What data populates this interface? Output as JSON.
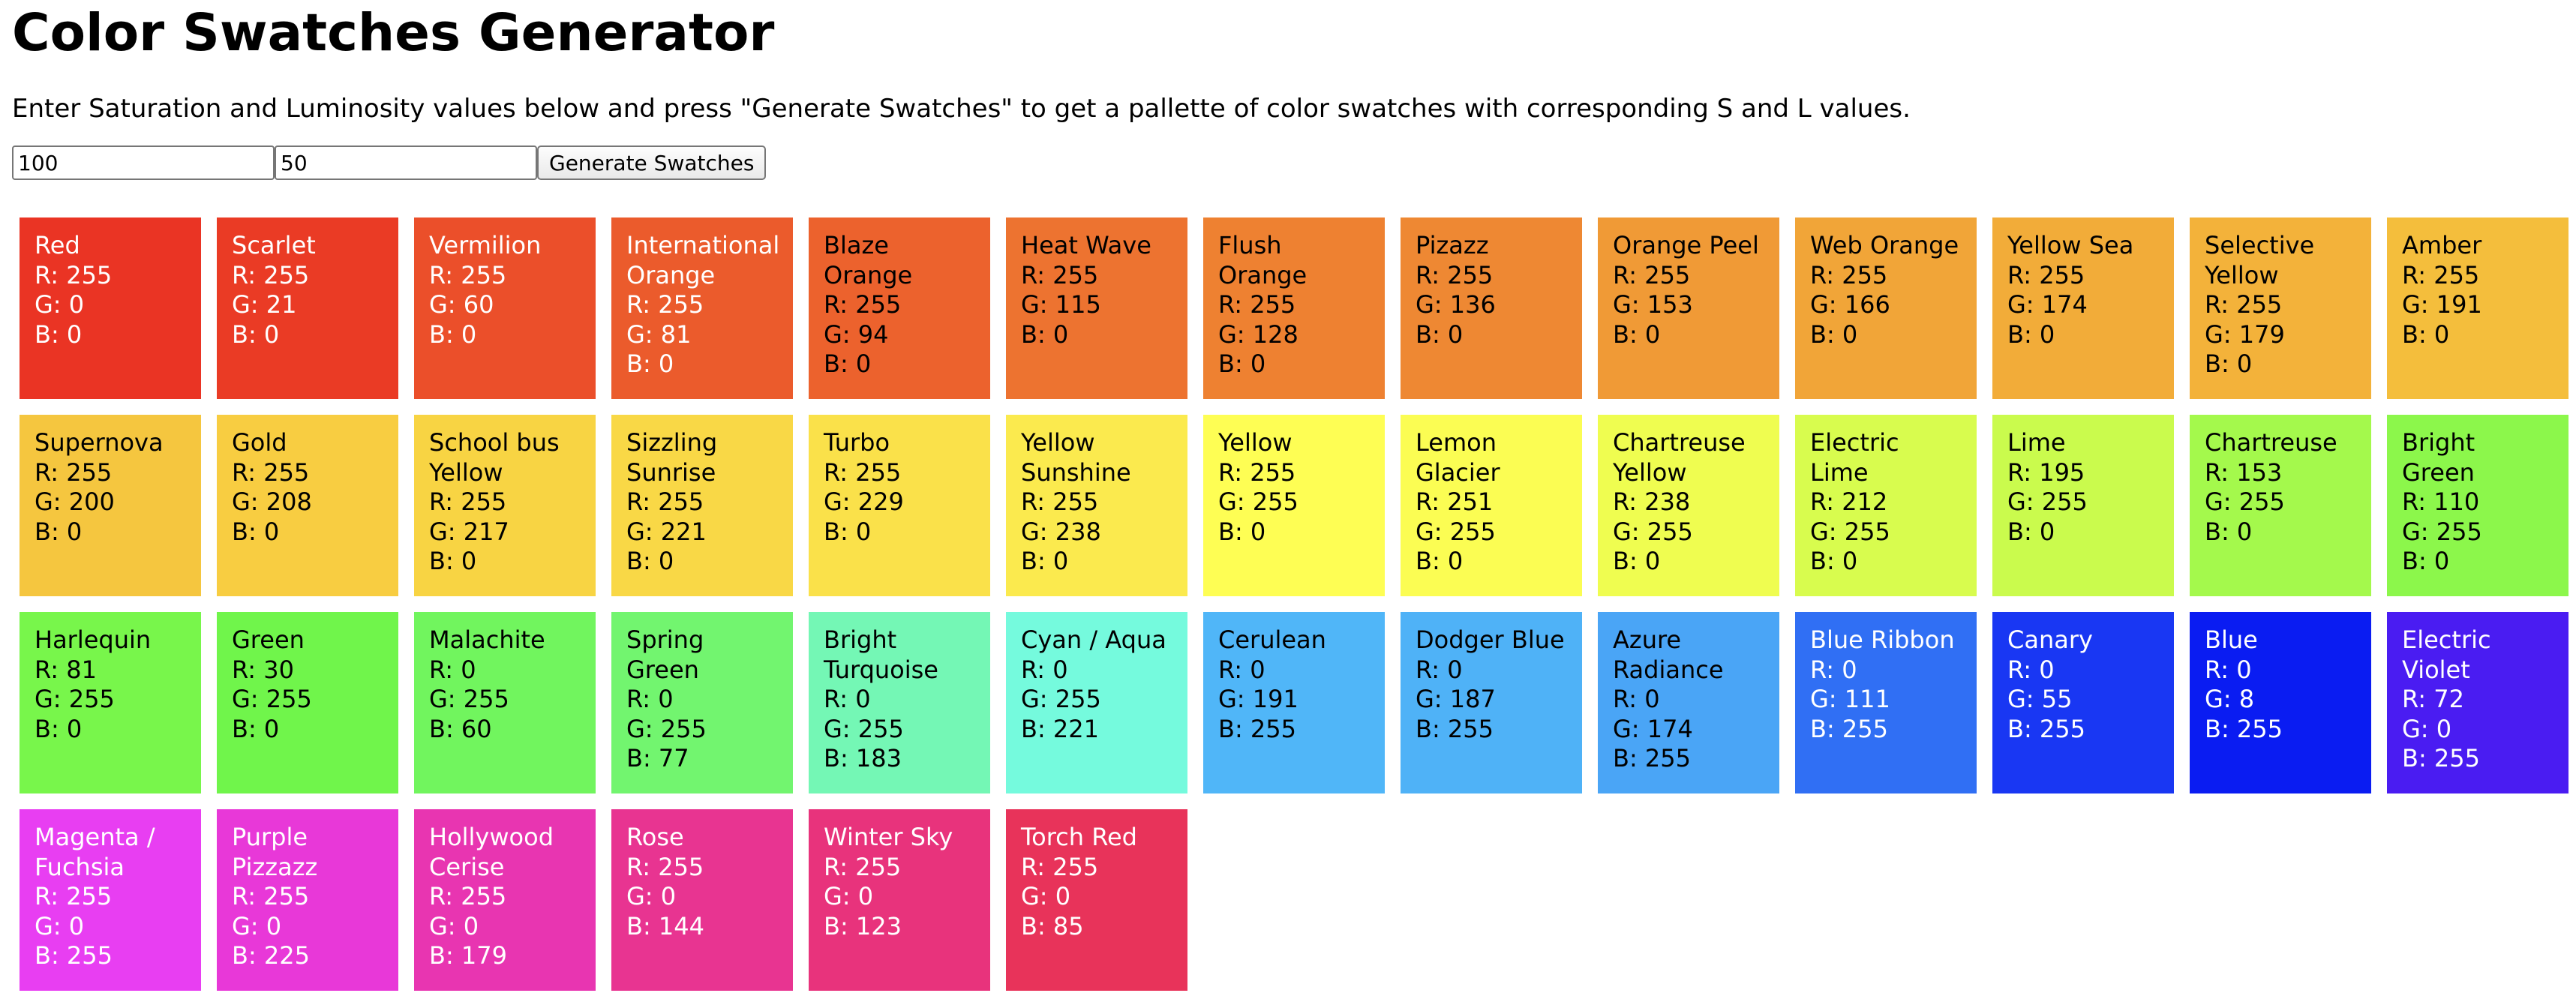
{
  "page": {
    "title": "Color Swatches Generator",
    "intro": "Enter Saturation and Luminosity values below and press \"Generate Swatches\" to get a pallette of color swatches with corresponding S and L values."
  },
  "controls": {
    "saturation_value": "100",
    "luminosity_value": "50",
    "generate_label": "Generate Swatches"
  },
  "swatches": [
    {
      "name": "Red",
      "r": "R: 255",
      "g": "G: 0",
      "b": "B: 0",
      "bg": "#ea3424",
      "text": "#ffffff"
    },
    {
      "name": "Scarlet",
      "r": "R: 255",
      "g": "G: 21",
      "b": "B: 0",
      "bg": "#ea3b25",
      "text": "#ffffff"
    },
    {
      "name": "Vermilion",
      "r": "R: 255",
      "g": "G: 60",
      "b": "B: 0",
      "bg": "#eb4f2a",
      "text": "#ffffff"
    },
    {
      "name": "International Orange",
      "r": "R: 255",
      "g": "G: 81",
      "b": "B: 0",
      "bg": "#eb5b2c",
      "text": "#ffffff"
    },
    {
      "name": "Blaze Orange",
      "r": "R: 255",
      "g": "G: 94",
      "b": "B: 0",
      "bg": "#ec622d",
      "text": "#000000"
    },
    {
      "name": "Heat Wave",
      "r": "R: 255",
      "g": "G: 115",
      "b": "B: 0",
      "bg": "#ed7330",
      "text": "#000000"
    },
    {
      "name": "Flush Orange",
      "r": "R: 255",
      "g": "G: 128",
      "b": "B: 0",
      "bg": "#ee8131",
      "text": "#000000"
    },
    {
      "name": "Pizazz",
      "r": "R: 255",
      "g": "G: 136",
      "b": "B: 0",
      "bg": "#ee8833",
      "text": "#000000"
    },
    {
      "name": "Orange Peel",
      "r": "R: 255",
      "g": "G: 153",
      "b": "B: 0",
      "bg": "#f09a36",
      "text": "#000000"
    },
    {
      "name": "Web Orange",
      "r": "R: 255",
      "g": "G: 166",
      "b": "B: 0",
      "bg": "#f1a538",
      "text": "#000000"
    },
    {
      "name": "Yellow Sea",
      "r": "R: 255",
      "g": "G: 174",
      "b": "B: 0",
      "bg": "#f2ac39",
      "text": "#000000"
    },
    {
      "name": "Selective Yellow",
      "r": "R: 255",
      "g": "G: 179",
      "b": "B: 0",
      "bg": "#f3b23a",
      "text": "#000000"
    },
    {
      "name": "Amber",
      "r": "R: 255",
      "g": "G: 191",
      "b": "B: 0",
      "bg": "#f4be3c",
      "text": "#000000"
    },
    {
      "name": "Supernova",
      "r": "R: 255",
      "g": "G: 200",
      "b": "B: 0",
      "bg": "#f5c63f",
      "text": "#000000"
    },
    {
      "name": "Gold",
      "r": "R: 255",
      "g": "G: 208",
      "b": "B: 0",
      "bg": "#f8cd41",
      "text": "#000000"
    },
    {
      "name": "School bus Yellow",
      "r": "R: 255",
      "g": "G: 217",
      "b": "B: 0",
      "bg": "#f8d443",
      "text": "#000000"
    },
    {
      "name": "Sizzling Sunrise",
      "r": "R: 255",
      "g": "G: 221",
      "b": "B: 0",
      "bg": "#f9d846",
      "text": "#000000"
    },
    {
      "name": "Turbo",
      "r": "R: 255",
      "g": "G: 229",
      "b": "B: 0",
      "bg": "#fae14a",
      "text": "#000000"
    },
    {
      "name": "Yellow Sunshine",
      "r": "R: 255",
      "g": "G: 238",
      "b": "B: 0",
      "bg": "#fbea4e",
      "text": "#000000"
    },
    {
      "name": "Yellow",
      "r": "R: 255",
      "g": "G: 255",
      "b": "B: 0",
      "bg": "#fefe54",
      "text": "#000000"
    },
    {
      "name": "Lemon Glacier",
      "r": "R: 251",
      "g": "G: 255",
      "b": "B: 0",
      "bg": "#fbfd53",
      "text": "#000000"
    },
    {
      "name": "Chartreuse Yellow",
      "r": "R: 238",
      "g": "G: 255",
      "b": "B: 0",
      "bg": "#effd50",
      "text": "#000000"
    },
    {
      "name": "Electric Lime",
      "r": "R: 212",
      "g": "G: 255",
      "b": "B: 0",
      "bg": "#d8fc4e",
      "text": "#000000"
    },
    {
      "name": "Lime",
      "r": "R: 195",
      "g": "G: 255",
      "b": "B: 0",
      "bg": "#cafb4d",
      "text": "#000000"
    },
    {
      "name": "Chartreuse",
      "r": "R: 153",
      "g": "G: 255",
      "b": "B: 0",
      "bg": "#a4f94c",
      "text": "#000000"
    },
    {
      "name": "Bright Green",
      "r": "R: 110",
      "g": "G: 255",
      "b": "B: 0",
      "bg": "#8cf74b",
      "text": "#000000"
    },
    {
      "name": "Harlequin",
      "r": "R: 81",
      "g": "G: 255",
      "b": "B: 0",
      "bg": "#78f64b",
      "text": "#000000"
    },
    {
      "name": "Green",
      "r": "R: 30",
      "g": "G: 255",
      "b": "B: 0",
      "bg": "#70f54b",
      "text": "#000000"
    },
    {
      "name": "Malachite",
      "r": "R: 0",
      "g": "G: 255",
      "b": "B: 60",
      "bg": "#71f55e",
      "text": "#000000"
    },
    {
      "name": "Spring Green",
      "r": "R: 0",
      "g": "G: 255",
      "b": "B: 77",
      "bg": "#72f56f",
      "text": "#000000"
    },
    {
      "name": "Bright Turquoise",
      "r": "R: 0",
      "g": "G: 255",
      "b": "B: 183",
      "bg": "#74f7b5",
      "text": "#000000"
    },
    {
      "name": "Cyan / Aqua",
      "r": "R: 0",
      "g": "G: 255",
      "b": "B: 221",
      "bg": "#75fadd",
      "text": "#000000"
    },
    {
      "name": "Cerulean",
      "r": "R: 0",
      "g": "G: 191",
      "b": "B: 255",
      "bg": "#50b6f8",
      "text": "#000000"
    },
    {
      "name": "Dodger Blue",
      "r": "R: 0",
      "g": "G: 187",
      "b": "B: 255",
      "bg": "#4fb2f7",
      "text": "#000000"
    },
    {
      "name": "Azure Radiance",
      "r": "R: 0",
      "g": "G: 174",
      "b": "B: 255",
      "bg": "#4aa5f6",
      "text": "#000000"
    },
    {
      "name": "Blue Ribbon",
      "r": "R: 0",
      "g": "G: 111",
      "b": "B: 255",
      "bg": "#306ff4",
      "text": "#ffffff"
    },
    {
      "name": "Canary",
      "r": "R: 0",
      "g": "G: 55",
      "b": "B: 255",
      "bg": "#1937f3",
      "text": "#ffffff"
    },
    {
      "name": "Blue",
      "r": "R: 0",
      "g": "G: 8",
      "b": "B: 255",
      "bg": "#0a1cf2",
      "text": "#ffffff"
    },
    {
      "name": "Electric Violet",
      "r": "R: 72",
      "g": "G: 0",
      "b": "B: 255",
      "bg": "#4a1cf2",
      "text": "#ffffff"
    },
    {
      "name": "Magenta / Fuchsia",
      "r": "R: 255",
      "g": "G: 0",
      "b": "B: 255",
      "bg": "#e83ef2",
      "text": "#ffffff"
    },
    {
      "name": "Purple Pizzazz",
      "r": "R: 255",
      "g": "G: 0",
      "b": "B: 225",
      "bg": "#e838d8",
      "text": "#ffffff"
    },
    {
      "name": "Hollywood Cerise",
      "r": "R: 255",
      "g": "G: 0",
      "b": "B: 179",
      "bg": "#e835b1",
      "text": "#ffffff"
    },
    {
      "name": "Rose",
      "r": "R: 255",
      "g": "G: 0",
      "b": "B: 144",
      "bg": "#e83491",
      "text": "#ffffff"
    },
    {
      "name": "Winter Sky",
      "r": "R: 255",
      "g": "G: 0",
      "b": "B: 123",
      "bg": "#e8337c",
      "text": "#ffffff"
    },
    {
      "name": "Torch Red",
      "r": "R: 255",
      "g": "G: 0",
      "b": "B: 85",
      "bg": "#e8335a",
      "text": "#ffffff"
    }
  ]
}
